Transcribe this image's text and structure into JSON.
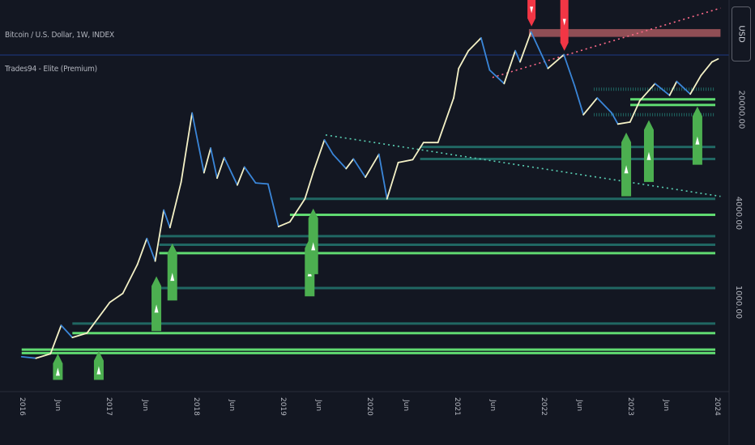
{
  "header": {
    "symbol_line": "Bitcoin / U.S. Dollar, 1W, INDEX",
    "indicator_line": "Trades94 - Elite (Premium)",
    "currency": "USD"
  },
  "colors": {
    "background": "#131722",
    "price_up": "#f4f1c6",
    "price_down": "#3a86d9",
    "support_green": "#69f07a",
    "support_teal": "#2a9d8f",
    "buy_signal": "#4caf50",
    "sell_signal": "#f23645",
    "resistance_zone": "#f77c80",
    "trendline_teal": "#5ad1b5",
    "trendline_pink": "#ff6a8a"
  },
  "chart_data": {
    "type": "line",
    "title": "",
    "y_scale": "log",
    "ylim": [
      250,
      110000
    ],
    "x_tick_labels": [
      "2016",
      "Jun",
      "2017",
      "Jun",
      "2018",
      "Jun",
      "2019",
      "Jun",
      "2020",
      "Jun",
      "2021",
      "Jun",
      "2022",
      "Jun",
      "2023",
      "Jun",
      "2024"
    ],
    "y_tick_labels": [
      {
        "label": "1000.00",
        "value": 1000
      },
      {
        "label": "4000.00",
        "value": 4000
      },
      {
        "label": "20000.00",
        "value": 20000
      }
    ],
    "price_series": {
      "name": "",
      "points": [
        [
          "2016-01-01",
          430
        ],
        [
          "2016-03-01",
          420
        ],
        [
          "2016-05-01",
          450
        ],
        [
          "2016-06-15",
          700
        ],
        [
          "2016-08-01",
          580
        ],
        [
          "2016-10-01",
          620
        ],
        [
          "2016-12-15",
          900
        ],
        [
          "2017-01-05",
          1000
        ],
        [
          "2017-03-01",
          1150
        ],
        [
          "2017-05-01",
          1800
        ],
        [
          "2017-06-10",
          2700
        ],
        [
          "2017-07-15",
          1900
        ],
        [
          "2017-08-20",
          4200
        ],
        [
          "2017-09-15",
          3200
        ],
        [
          "2017-11-01",
          6500
        ],
        [
          "2017-12-17",
          19000
        ],
        [
          "2018-02-05",
          7500
        ],
        [
          "2018-03-05",
          11000
        ],
        [
          "2018-04-01",
          6900
        ],
        [
          "2018-05-01",
          9500
        ],
        [
          "2018-06-25",
          6200
        ],
        [
          "2018-07-25",
          8200
        ],
        [
          "2018-09-10",
          6400
        ],
        [
          "2018-11-01",
          6300
        ],
        [
          "2018-12-15",
          3250
        ],
        [
          "2019-02-01",
          3500
        ],
        [
          "2019-04-05",
          5000
        ],
        [
          "2019-05-15",
          8000
        ],
        [
          "2019-06-26",
          12500
        ],
        [
          "2019-08-01",
          10000
        ],
        [
          "2019-09-25",
          8000
        ],
        [
          "2019-10-26",
          9300
        ],
        [
          "2019-12-15",
          7000
        ],
        [
          "2020-02-10",
          10000
        ],
        [
          "2020-03-15",
          5000
        ],
        [
          "2020-05-01",
          8800
        ],
        [
          "2020-07-01",
          9200
        ],
        [
          "2020-08-15",
          12000
        ],
        [
          "2020-10-15",
          12000
        ],
        [
          "2020-12-20",
          24000
        ],
        [
          "2021-01-10",
          38000
        ],
        [
          "2021-02-20",
          50000
        ],
        [
          "2021-04-14",
          61000
        ],
        [
          "2021-05-20",
          37000
        ],
        [
          "2021-07-20",
          30000
        ],
        [
          "2021-09-05",
          50000
        ],
        [
          "2021-09-25",
          42000
        ],
        [
          "2021-11-10",
          67000
        ],
        [
          "2022-01-20",
          38000
        ],
        [
          "2022-03-28",
          47000
        ],
        [
          "2022-05-12",
          29000
        ],
        [
          "2022-06-18",
          18500
        ],
        [
          "2022-08-15",
          24000
        ],
        [
          "2022-10-15",
          19000
        ],
        [
          "2022-11-10",
          16000
        ],
        [
          "2022-12-31",
          16500
        ],
        [
          "2023-02-10",
          23000
        ],
        [
          "2023-04-15",
          30000
        ],
        [
          "2023-06-15",
          25000
        ],
        [
          "2023-07-15",
          31000
        ],
        [
          "2023-09-10",
          25500
        ],
        [
          "2023-10-25",
          34000
        ],
        [
          "2023-12-10",
          42000
        ],
        [
          "2024-01-05",
          44000
        ]
      ]
    },
    "support_levels": [
      {
        "price": 18500,
        "color": "support_teal",
        "dotted": true,
        "start": "2022-08-01"
      },
      {
        "price": 21500,
        "color": "support_green",
        "dotted": false,
        "start": "2023-01-01"
      },
      {
        "price": 23500,
        "color": "support_green",
        "dotted": false,
        "start": "2023-01-01"
      },
      {
        "price": 27500,
        "color": "support_teal",
        "dotted": true,
        "start": "2022-08-01"
      },
      {
        "price": 11200,
        "color": "support_teal",
        "dotted": false,
        "start": "2020-08-01"
      },
      {
        "price": 9300,
        "color": "support_teal",
        "dotted": false,
        "start": "2020-08-01"
      },
      {
        "price": 5000,
        "color": "support_teal",
        "dotted": false,
        "start": "2019-02-01"
      },
      {
        "price": 3900,
        "color": "support_green",
        "dotted": false,
        "start": "2019-02-01"
      },
      {
        "price": 2800,
        "color": "support_teal",
        "dotted": false,
        "start": "2017-08-01"
      },
      {
        "price": 2450,
        "color": "support_teal",
        "dotted": false,
        "start": "2017-08-01"
      },
      {
        "price": 2150,
        "color": "support_green",
        "dotted": false,
        "start": "2017-08-01"
      },
      {
        "price": 1250,
        "color": "support_teal",
        "dotted": false,
        "start": "2017-08-01"
      },
      {
        "price": 720,
        "color": "support_teal",
        "dotted": false,
        "start": "2016-08-01"
      },
      {
        "price": 620,
        "color": "support_green",
        "dotted": false,
        "start": "2016-08-01"
      },
      {
        "price": 480,
        "color": "support_green",
        "dotted": false,
        "start": "2016-01-01"
      },
      {
        "price": 455,
        "color": "support_green",
        "dotted": false,
        "start": "2016-01-01"
      }
    ],
    "resistance_zone": {
      "low": 62000,
      "high": 70000,
      "start": "2021-11-01",
      "end": "2024-01-15"
    },
    "buy_signals": [
      {
        "date": "2016-06-01",
        "top": 450,
        "bottom": 300
      },
      {
        "date": "2016-11-20",
        "top": 470,
        "bottom": 300
      },
      {
        "date": "2017-07-20",
        "top": 1500,
        "bottom": 640
      },
      {
        "date": "2017-09-25",
        "top": 2500,
        "bottom": 1030
      },
      {
        "date": "2019-04-25",
        "top": 2700,
        "bottom": 1100
      },
      {
        "date": "2019-05-10",
        "top": 4300,
        "bottom": 1550
      },
      {
        "date": "2022-12-15",
        "top": 14000,
        "bottom": 5200
      },
      {
        "date": "2023-03-20",
        "top": 17000,
        "bottom": 6500
      },
      {
        "date": "2023-10-10",
        "top": 21000,
        "bottom": 8500
      }
    ],
    "sell_signals": [
      {
        "date": "2021-11-12",
        "top": 110000,
        "bottom": 73000
      },
      {
        "date": "2022-03-30",
        "top": 110000,
        "bottom": 50000
      }
    ],
    "trendlines": [
      {
        "from": [
          "2019-07-01",
          13500
        ],
        "to": [
          "2024-01-15",
          5200
        ],
        "color": "trendline_teal"
      },
      {
        "from": [
          "2021-06-01",
          33000
        ],
        "to": [
          "2024-01-15",
          97000
        ],
        "color": "trendline_pink"
      }
    ]
  }
}
